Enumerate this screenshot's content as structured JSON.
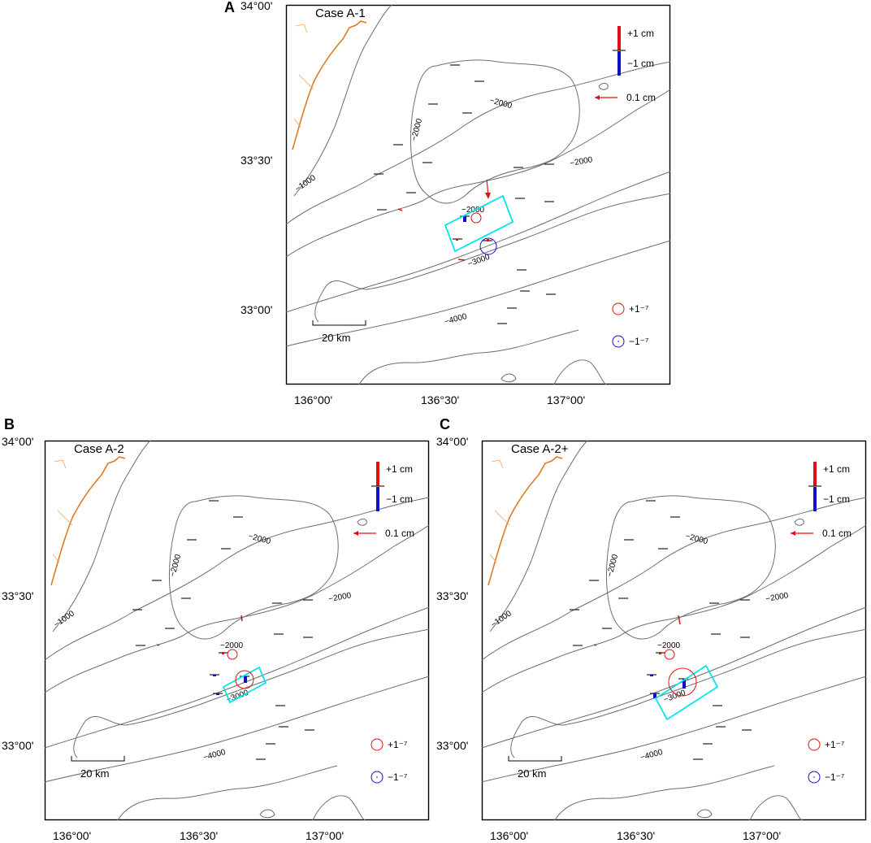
{
  "figure": {
    "panels": [
      {
        "letter": "A",
        "case": "Case A-1",
        "y_ticks": [
          "34°00'",
          "33°30'",
          "33°00'"
        ],
        "x_ticks": [
          "136°00'",
          "136°30'",
          "137°00'"
        ],
        "contour_labels": [
          "−1000",
          "−2000",
          "−2000",
          "−2000",
          "−2000",
          "−3000",
          "−4000"
        ],
        "legend": {
          "up_label": "+1 cm",
          "down_label": "−1 cm",
          "horizontal_label": "0.1 cm",
          "circle_pos_label": "+1⁻⁷",
          "circle_neg_label": "−1⁻⁷"
        },
        "scale_bar": "20 km"
      },
      {
        "letter": "B",
        "case": "Case A-2",
        "y_ticks": [
          "34°00'",
          "33°30'",
          "33°00'"
        ],
        "x_ticks": [
          "136°00'",
          "136°30'",
          "137°00'"
        ],
        "contour_labels": [
          "−1000",
          "−2000",
          "−2000",
          "−2000",
          "−2000",
          "−3000",
          "−4000"
        ],
        "legend": {
          "up_label": "+1 cm",
          "down_label": "−1 cm",
          "horizontal_label": "0.1 cm",
          "circle_pos_label": "+1⁻⁷",
          "circle_neg_label": "−1⁻⁷"
        },
        "scale_bar": "20 km"
      },
      {
        "letter": "C",
        "case": "Case A-2+",
        "y_ticks": [
          "34°00'",
          "33°30'",
          "33°00'"
        ],
        "x_ticks": [
          "136°00'",
          "136°30'",
          "137°00'"
        ],
        "contour_labels": [
          "−1000",
          "−2000",
          "−2000",
          "−2000",
          "−2000",
          "−3000",
          "−4000"
        ],
        "legend": {
          "up_label": "+1 cm",
          "down_label": "−1 cm",
          "horizontal_label": "0.1 cm",
          "circle_pos_label": "+1⁻⁷",
          "circle_neg_label": "−1⁻⁷"
        },
        "scale_bar": "20 km"
      }
    ]
  },
  "colors": {
    "coast": "#e07a1f",
    "contour": "#6e6e6e",
    "fault_box": "#00e5ee",
    "uplift": "#e01010",
    "subsidence": "#1010c8",
    "station": "#222222"
  }
}
